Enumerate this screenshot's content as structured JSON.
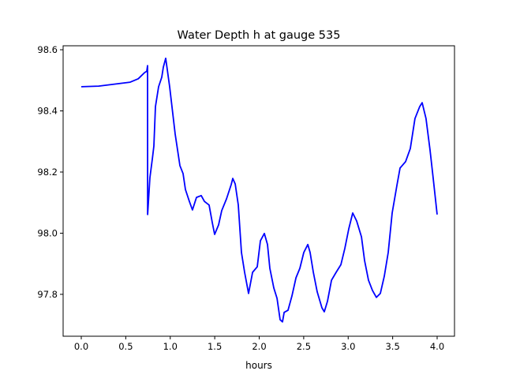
{
  "chart_data": {
    "type": "line",
    "title": "Water Depth h at gauge 535",
    "xlabel": "hours",
    "ylabel": "",
    "xlim": [
      -0.204,
      4.195
    ],
    "ylim": [
      97.663,
      98.613
    ],
    "xticks": [
      0.0,
      0.5,
      1.0,
      1.5,
      2.0,
      2.5,
      3.0,
      3.5,
      4.0
    ],
    "xtick_labels": [
      "0.0",
      "0.5",
      "1.0",
      "1.5",
      "2.0",
      "2.5",
      "3.0",
      "3.5",
      "4.0"
    ],
    "yticks": [
      97.8,
      98.0,
      98.2,
      98.4,
      98.6
    ],
    "ytick_labels": [
      "97.8",
      "98.0",
      "98.2",
      "98.4",
      "98.6"
    ],
    "grid": false,
    "series": [
      {
        "name": "h",
        "color": "#0000ff",
        "x": [
          0,
          0.195,
          0.417,
          0.55,
          0.64,
          0.71,
          0.736,
          0.745,
          0.746,
          0.772,
          0.8,
          0.816,
          0.834,
          0.869,
          0.905,
          0.922,
          0.949,
          0.993,
          1.055,
          1.109,
          1.144,
          1.171,
          1.215,
          1.25,
          1.295,
          1.348,
          1.384,
          1.437,
          1.472,
          1.499,
          1.543,
          1.579,
          1.632,
          1.685,
          1.703,
          1.73,
          1.765,
          1.8,
          1.836,
          1.88,
          1.925,
          1.978,
          2.013,
          2.058,
          2.093,
          2.12,
          2.164,
          2.2,
          2.235,
          2.262,
          2.28,
          2.324,
          2.368,
          2.413,
          2.457,
          2.501,
          2.546,
          2.572,
          2.608,
          2.652,
          2.705,
          2.732,
          2.767,
          2.812,
          2.865,
          2.918,
          2.962,
          3.007,
          3.051,
          3.095,
          3.149,
          3.184,
          3.228,
          3.273,
          3.317,
          3.361,
          3.406,
          3.45,
          3.494,
          3.548,
          3.583,
          3.645,
          3.698,
          3.751,
          3.804,
          3.831,
          3.875,
          3.92,
          3.955,
          4.0
        ],
        "y": [
          98.479,
          98.481,
          98.489,
          98.494,
          98.505,
          98.525,
          98.53,
          98.548,
          98.061,
          98.182,
          98.246,
          98.285,
          98.414,
          98.479,
          98.51,
          98.543,
          98.572,
          98.479,
          98.324,
          98.221,
          98.195,
          98.143,
          98.104,
          98.076,
          98.117,
          98.123,
          98.104,
          98.092,
          98.035,
          97.996,
          98.027,
          98.074,
          98.112,
          98.159,
          98.179,
          98.161,
          98.092,
          97.937,
          97.872,
          97.803,
          97.872,
          97.89,
          97.975,
          97.999,
          97.963,
          97.885,
          97.821,
          97.787,
          97.717,
          97.71,
          97.741,
          97.748,
          97.795,
          97.854,
          97.885,
          97.937,
          97.963,
          97.937,
          97.872,
          97.808,
          97.756,
          97.743,
          97.777,
          97.846,
          97.872,
          97.897,
          97.95,
          98.014,
          98.066,
          98.04,
          97.988,
          97.911,
          97.846,
          97.813,
          97.79,
          97.803,
          97.859,
          97.937,
          98.066,
          98.156,
          98.213,
          98.234,
          98.277,
          98.375,
          98.414,
          98.427,
          98.375,
          98.272,
          98.182,
          98.061
        ]
      }
    ]
  }
}
